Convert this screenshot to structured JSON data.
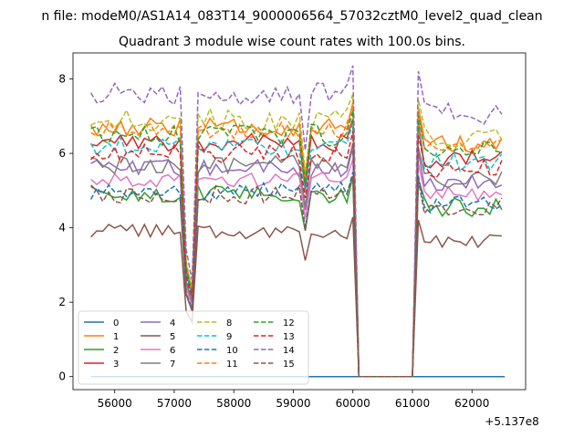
{
  "figure": {
    "suptitle": "n file: modeM0/AS1A14_083T14_9000006564_57032cztM0_level2_quad_clean",
    "offset_label": "+5.137e8"
  },
  "chart_data": {
    "type": "line",
    "title": "Quadrant 3 module wise count rates with 100.0s bins.",
    "xlabel": "",
    "ylabel": "",
    "xlim": [
      55300,
      62900
    ],
    "ylim": [
      -0.35,
      8.7
    ],
    "x_offset": 513700000,
    "xticks": [
      56000,
      57000,
      58000,
      59000,
      60000,
      61000,
      62000
    ],
    "xtick_labels": [
      "56000",
      "57000",
      "58000",
      "59000",
      "60000",
      "61000",
      "62000"
    ],
    "yticks": [
      0,
      2,
      4,
      6,
      8
    ],
    "ytick_labels": [
      "0",
      "2",
      "4",
      "6",
      "8"
    ],
    "legend": {
      "placement": "lower-left",
      "columns": 4
    },
    "gaps": [
      [
        60100,
        61000
      ]
    ],
    "segment_breaks": [
      {
        "x": 57150,
        "y": 3.0
      },
      {
        "x": 57250,
        "y": 1.6
      },
      {
        "x": 57350,
        "y": 4.5
      },
      {
        "x": 59250,
        "y": 4.8
      },
      {
        "x": 59950,
        "y": 7.0
      },
      {
        "x": 60050,
        "y": 3.0
      },
      {
        "x": 60100,
        "y": 0
      },
      {
        "x": 61000,
        "y": 0
      },
      {
        "x": 61100,
        "y": 7.5
      },
      {
        "x": 62450,
        "y": 6.5
      },
      {
        "x": 62550,
        "y": 0.5
      }
    ],
    "x_start": 55600,
    "x_step": 100,
    "series": [
      {
        "name": "0",
        "color": "#1f77b4",
        "dash": "solid",
        "constant": 0
      },
      {
        "name": "1",
        "color": "#ff7f0e",
        "dash": "solid",
        "level": 6.7,
        "amp": 0.25
      },
      {
        "name": "2",
        "color": "#2ca02c",
        "dash": "solid",
        "level": 4.9,
        "amp": 0.25
      },
      {
        "name": "3",
        "color": "#d62728",
        "dash": "solid",
        "level": 6.3,
        "amp": 0.25
      },
      {
        "name": "4",
        "color": "#9467bd",
        "dash": "solid",
        "level": 5.6,
        "amp": 0.25
      },
      {
        "name": "5",
        "color": "#8c564b",
        "dash": "solid",
        "level": 3.9,
        "amp": 0.2
      },
      {
        "name": "6",
        "color": "#e377c2",
        "dash": "solid",
        "level": 5.3,
        "amp": 0.2
      },
      {
        "name": "7",
        "color": "#7f7f7f",
        "dash": "solid",
        "level": 5.7,
        "amp": 0.25
      },
      {
        "name": "8",
        "color": "#bcbd22",
        "dash": "dashed",
        "level": 6.9,
        "amp": 0.3
      },
      {
        "name": "9",
        "color": "#17becf",
        "dash": "dashed",
        "level": 6.2,
        "amp": 0.25
      },
      {
        "name": "10",
        "color": "#1f77b4",
        "dash": "dashed",
        "level": 5.0,
        "amp": 0.25
      },
      {
        "name": "11",
        "color": "#ff7f0e",
        "dash": "dashed",
        "level": 6.6,
        "amp": 0.25
      },
      {
        "name": "12",
        "color": "#2ca02c",
        "dash": "dashed",
        "level": 6.5,
        "amp": 0.3
      },
      {
        "name": "13",
        "color": "#d62728",
        "dash": "dashed",
        "level": 6.0,
        "amp": 0.25
      },
      {
        "name": "14",
        "color": "#9467bd",
        "dash": "dashed",
        "level": 7.6,
        "amp": 0.3
      },
      {
        "name": "15",
        "color": "#8c564b",
        "dash": "dashed",
        "level": 4.9,
        "amp": 0.25
      }
    ]
  }
}
